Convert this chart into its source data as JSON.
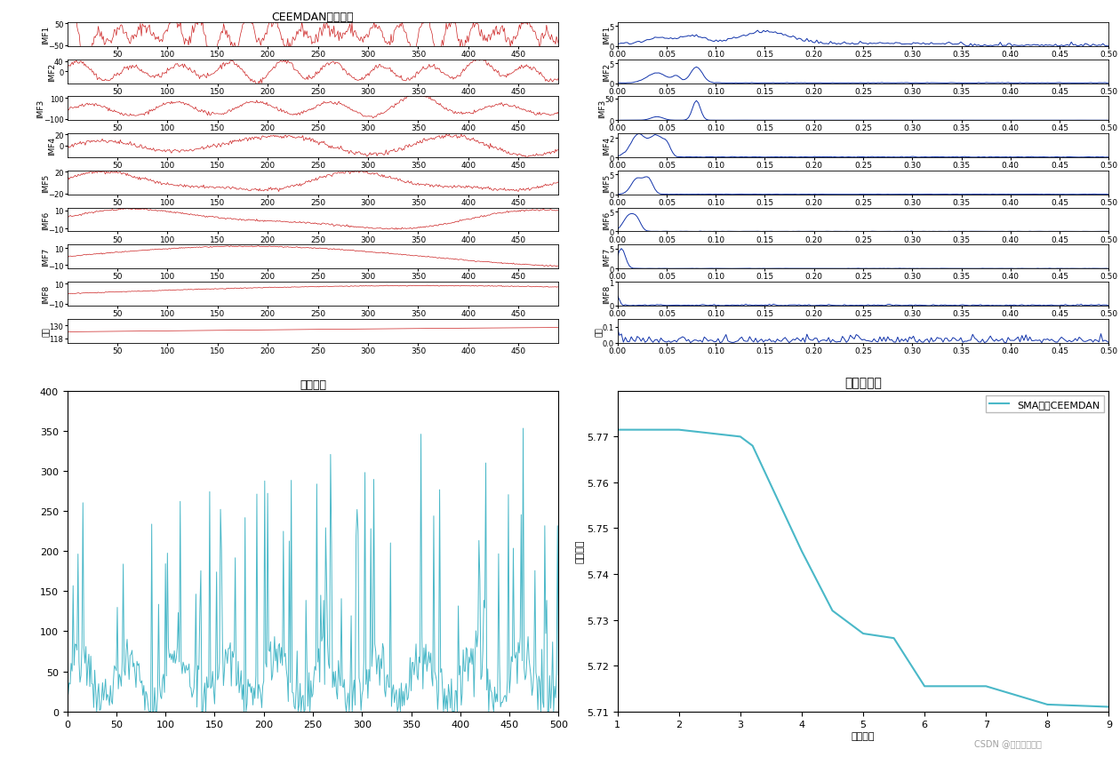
{
  "title_top_left": "CEEMDAN分解结果",
  "title_bottom_left": "原始信号",
  "title_bottom_right": "迭代曲线图",
  "legend_label": "SMA优化CEEMDAN",
  "xlabel_iter": "迭代次数",
  "ylabel_iter": "适应度値",
  "imf_labels_left": [
    "IMF1",
    "IMF2",
    "IMF3",
    "IMF4",
    "IMF5",
    "IMF6",
    "IMF7",
    "IMF8",
    "残差"
  ],
  "imf_labels_right": [
    "IMF1",
    "IMF2",
    "IMF3",
    "IMF4",
    "IMF5",
    "IMF6",
    "IMF7",
    "IMF8",
    "残差"
  ],
  "red_color": "#cc2222",
  "blue_color": "#1133aa",
  "cyan_color": "#4ab8c8",
  "white": "#ffffff",
  "n_points": 500,
  "iteration_x": [
    1,
    2,
    3,
    3.2,
    4.0,
    4.5,
    5.0,
    5.5,
    6.0,
    6.5,
    7.0,
    8.0,
    9.0
  ],
  "iteration_y": [
    5.7715,
    5.7715,
    5.77,
    5.768,
    5.745,
    5.732,
    5.727,
    5.726,
    5.7155,
    5.7155,
    5.7155,
    5.7115,
    5.711
  ]
}
